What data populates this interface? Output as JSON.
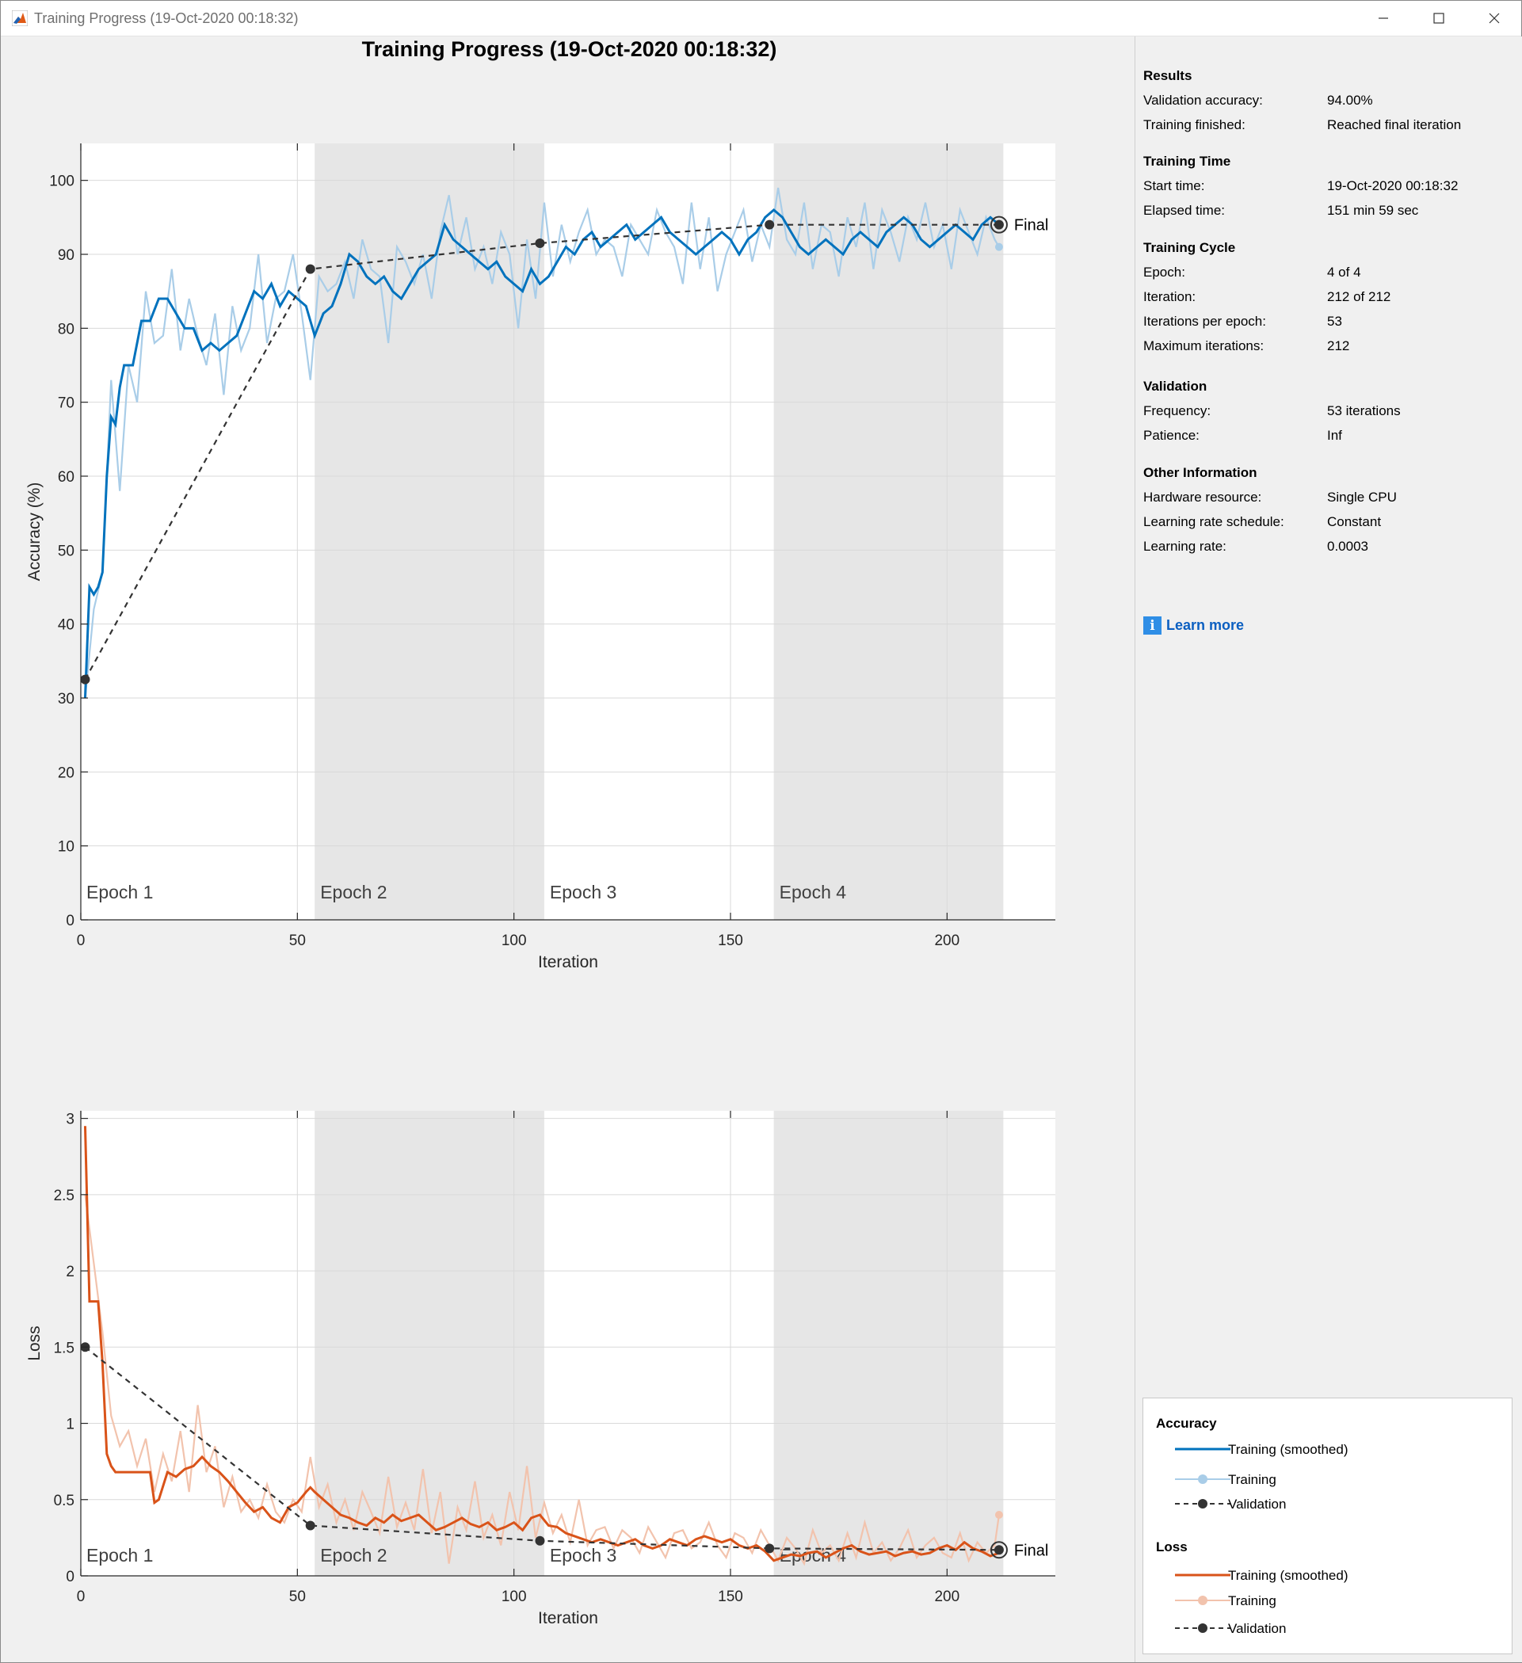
{
  "window": {
    "title": "Training Progress (19-Oct-2020 00:18:32)",
    "controls": {
      "minimize_icon": "minimize-icon",
      "maximize_icon": "maximize-icon",
      "close_icon": "close-icon"
    }
  },
  "main_title": "Training Progress (19-Oct-2020 00:18:32)",
  "panel": {
    "sections": [
      {
        "heading": "Results",
        "rows": [
          {
            "label": "Validation accuracy:",
            "value": "94.00%"
          },
          {
            "label": "Training finished:",
            "value": "Reached final iteration"
          }
        ]
      },
      {
        "heading": "Training Time",
        "rows": [
          {
            "label": "Start time:",
            "value": "19-Oct-2020 00:18:32"
          },
          {
            "label": "Elapsed time:",
            "value": "151 min 59 sec"
          }
        ]
      },
      {
        "heading": "Training Cycle",
        "rows": [
          {
            "label": "Epoch:",
            "value": "4 of 4"
          },
          {
            "label": "Iteration:",
            "value": "212 of 212"
          },
          {
            "label": "Iterations per epoch:",
            "value": "53"
          },
          {
            "label": "Maximum iterations:",
            "value": "212"
          }
        ]
      },
      {
        "heading": "Validation",
        "rows": [
          {
            "label": "Frequency:",
            "value": "53 iterations"
          },
          {
            "label": "Patience:",
            "value": "Inf"
          }
        ]
      },
      {
        "heading": "Other Information",
        "rows": [
          {
            "label": "Hardware resource:",
            "value": "Single CPU"
          },
          {
            "label": "Learning rate schedule:",
            "value": "Constant"
          },
          {
            "label": "Learning rate:",
            "value": "0.0003"
          }
        ]
      }
    ],
    "learn_more": "Learn more"
  },
  "legend": {
    "accuracy_heading": "Accuracy",
    "loss_heading": "Loss",
    "items": [
      "Training (smoothed)",
      "Training",
      "Validation"
    ]
  },
  "colors": {
    "acc_smoothed": "#0072bd",
    "acc_raw": "#a9cde8",
    "loss_smoothed": "#d95319",
    "loss_raw": "#f2c3ad",
    "validation": "#333333",
    "epoch_shade": "#e6e6e6"
  },
  "chart_data": [
    {
      "type": "line",
      "ylabel": "Accuracy (%)",
      "xlabel": "Iteration",
      "xlim": [
        0,
        225
      ],
      "ylim": [
        0,
        105
      ],
      "xticks": [
        0,
        50,
        100,
        150,
        200
      ],
      "yticks": [
        0,
        10,
        20,
        30,
        40,
        50,
        60,
        70,
        80,
        90,
        100
      ],
      "grid": true,
      "epoch_labels": [
        "Epoch 1",
        "Epoch 2",
        "Epoch 3",
        "Epoch 4"
      ],
      "epoch_bounds": [
        0,
        54,
        107,
        160,
        213
      ],
      "final_label": "Final",
      "series": [
        {
          "name": "Training (smoothed)",
          "x": [
            1,
            2,
            3,
            4,
            5,
            6,
            7,
            8,
            9,
            10,
            12,
            14,
            16,
            18,
            20,
            22,
            24,
            26,
            28,
            30,
            32,
            34,
            36,
            38,
            40,
            42,
            44,
            46,
            48,
            50,
            52,
            53,
            54,
            56,
            58,
            60,
            62,
            64,
            66,
            68,
            70,
            72,
            74,
            76,
            78,
            80,
            82,
            84,
            86,
            88,
            90,
            92,
            94,
            96,
            98,
            100,
            102,
            104,
            106,
            108,
            110,
            112,
            114,
            116,
            118,
            120,
            122,
            124,
            126,
            128,
            130,
            132,
            134,
            136,
            138,
            140,
            142,
            144,
            146,
            148,
            150,
            152,
            154,
            156,
            158,
            160,
            162,
            164,
            166,
            168,
            170,
            172,
            174,
            176,
            178,
            180,
            182,
            184,
            186,
            188,
            190,
            192,
            194,
            196,
            198,
            200,
            202,
            204,
            206,
            208,
            210,
            212
          ],
          "y": [
            30,
            45,
            44,
            45,
            47,
            60,
            68,
            67,
            72,
            75,
            75,
            81,
            81,
            84,
            84,
            82,
            80,
            80,
            77,
            78,
            77,
            78,
            79,
            82,
            85,
            84,
            86,
            83,
            85,
            84,
            83,
            81,
            79,
            82,
            83,
            86,
            90,
            89,
            87,
            86,
            87,
            85,
            84,
            86,
            88,
            89,
            90,
            94,
            92,
            91,
            90,
            89,
            88,
            89,
            87,
            86,
            85,
            88,
            86,
            87,
            89,
            91,
            90,
            92,
            93,
            91,
            92,
            93,
            94,
            92,
            93,
            94,
            95,
            93,
            92,
            91,
            90,
            91,
            92,
            93,
            92,
            90,
            92,
            93,
            95,
            96,
            95,
            93,
            91,
            90,
            91,
            92,
            91,
            90,
            92,
            93,
            92,
            91,
            93,
            94,
            95,
            94,
            92,
            91,
            92,
            93,
            94,
            93,
            92,
            94,
            95,
            94
          ]
        },
        {
          "name": "Training",
          "x": [
            1,
            3,
            5,
            7,
            9,
            11,
            13,
            15,
            17,
            19,
            21,
            23,
            25,
            27,
            29,
            31,
            33,
            35,
            37,
            39,
            41,
            43,
            45,
            47,
            49,
            51,
            53,
            55,
            57,
            59,
            61,
            63,
            65,
            67,
            69,
            71,
            73,
            75,
            77,
            79,
            81,
            83,
            85,
            87,
            89,
            91,
            93,
            95,
            97,
            99,
            101,
            103,
            105,
            107,
            109,
            111,
            113,
            115,
            117,
            119,
            121,
            123,
            125,
            127,
            129,
            131,
            133,
            135,
            137,
            139,
            141,
            143,
            145,
            147,
            149,
            151,
            153,
            155,
            157,
            159,
            161,
            163,
            165,
            167,
            169,
            171,
            173,
            175,
            177,
            179,
            181,
            183,
            185,
            187,
            189,
            191,
            193,
            195,
            197,
            199,
            201,
            203,
            205,
            207,
            209,
            211,
            212
          ],
          "y": [
            30,
            42,
            47,
            73,
            58,
            75,
            70,
            85,
            78,
            79,
            88,
            77,
            84,
            79,
            75,
            82,
            71,
            83,
            77,
            80,
            90,
            78,
            84,
            85,
            90,
            82,
            73,
            87,
            85,
            86,
            89,
            84,
            92,
            88,
            87,
            78,
            91,
            89,
            86,
            90,
            84,
            93,
            98,
            90,
            95,
            88,
            91,
            86,
            93,
            90,
            80,
            92,
            84,
            97,
            87,
            94,
            89,
            93,
            96,
            90,
            92,
            91,
            87,
            94,
            92,
            90,
            96,
            93,
            91,
            86,
            97,
            88,
            95,
            85,
            90,
            93,
            96,
            89,
            94,
            91,
            99,
            92,
            90,
            97,
            88,
            94,
            93,
            87,
            95,
            91,
            97,
            88,
            96,
            93,
            89,
            95,
            92,
            97,
            91,
            94,
            88,
            96,
            93,
            90,
            95,
            92,
            91
          ]
        },
        {
          "name": "Validation",
          "x": [
            1,
            53,
            106,
            159,
            212
          ],
          "y": [
            32.5,
            88,
            91.5,
            94,
            94
          ]
        }
      ]
    },
    {
      "type": "line",
      "ylabel": "Loss",
      "xlabel": "Iteration",
      "xlim": [
        0,
        225
      ],
      "ylim": [
        0,
        3.05
      ],
      "xticks": [
        0,
        50,
        100,
        150,
        200
      ],
      "yticks": [
        0,
        0.5,
        1,
        1.5,
        2,
        2.5,
        3
      ],
      "ytick_labels": [
        "0",
        "0.5",
        "1",
        "1.5",
        "2",
        "2.5",
        "3"
      ],
      "grid": true,
      "epoch_labels": [
        "Epoch 1",
        "Epoch 2",
        "Epoch 3",
        "Epoch 4"
      ],
      "epoch_bounds": [
        0,
        54,
        107,
        160,
        213
      ],
      "final_label": "Final",
      "series": [
        {
          "name": "Training (smoothed)",
          "x": [
            1,
            2,
            3,
            4,
            5,
            6,
            7,
            8,
            9,
            10,
            12,
            14,
            16,
            17,
            18,
            20,
            22,
            24,
            26,
            28,
            30,
            32,
            34,
            36,
            38,
            40,
            42,
            44,
            46,
            48,
            50,
            52,
            53,
            54,
            56,
            58,
            60,
            62,
            64,
            66,
            68,
            70,
            72,
            74,
            76,
            78,
            80,
            82,
            84,
            86,
            88,
            90,
            92,
            94,
            96,
            98,
            100,
            102,
            104,
            106,
            108,
            110,
            112,
            114,
            116,
            118,
            120,
            122,
            124,
            126,
            128,
            130,
            132,
            134,
            136,
            138,
            140,
            142,
            144,
            146,
            148,
            150,
            152,
            154,
            156,
            158,
            160,
            162,
            164,
            166,
            168,
            170,
            172,
            174,
            176,
            178,
            180,
            182,
            184,
            186,
            188,
            190,
            192,
            194,
            196,
            198,
            200,
            202,
            204,
            206,
            208,
            210,
            212
          ],
          "y": [
            2.95,
            1.8,
            1.8,
            1.8,
            1.4,
            0.8,
            0.72,
            0.68,
            0.68,
            0.68,
            0.68,
            0.68,
            0.68,
            0.48,
            0.5,
            0.68,
            0.65,
            0.7,
            0.72,
            0.78,
            0.72,
            0.68,
            0.62,
            0.55,
            0.48,
            0.42,
            0.45,
            0.38,
            0.35,
            0.45,
            0.48,
            0.55,
            0.58,
            0.55,
            0.5,
            0.45,
            0.4,
            0.38,
            0.35,
            0.33,
            0.38,
            0.35,
            0.4,
            0.36,
            0.38,
            0.4,
            0.35,
            0.3,
            0.32,
            0.35,
            0.38,
            0.34,
            0.32,
            0.35,
            0.3,
            0.32,
            0.35,
            0.3,
            0.38,
            0.4,
            0.33,
            0.32,
            0.28,
            0.26,
            0.24,
            0.22,
            0.24,
            0.22,
            0.2,
            0.22,
            0.24,
            0.2,
            0.18,
            0.2,
            0.24,
            0.22,
            0.2,
            0.24,
            0.26,
            0.24,
            0.22,
            0.24,
            0.2,
            0.18,
            0.2,
            0.16,
            0.1,
            0.12,
            0.14,
            0.13,
            0.15,
            0.16,
            0.12,
            0.15,
            0.18,
            0.2,
            0.16,
            0.14,
            0.15,
            0.16,
            0.13,
            0.15,
            0.16,
            0.14,
            0.15,
            0.18,
            0.2,
            0.17,
            0.22,
            0.18,
            0.16,
            0.13,
            0.15
          ]
        },
        {
          "name": "Training",
          "x": [
            1,
            3,
            5,
            7,
            9,
            11,
            13,
            15,
            17,
            19,
            21,
            23,
            25,
            27,
            29,
            31,
            33,
            35,
            37,
            39,
            41,
            43,
            45,
            47,
            49,
            51,
            53,
            55,
            57,
            59,
            61,
            63,
            65,
            67,
            69,
            71,
            73,
            75,
            77,
            79,
            81,
            83,
            85,
            87,
            89,
            91,
            93,
            95,
            97,
            99,
            101,
            103,
            105,
            107,
            109,
            111,
            113,
            115,
            117,
            119,
            121,
            123,
            125,
            127,
            129,
            131,
            133,
            135,
            137,
            139,
            141,
            143,
            145,
            147,
            149,
            151,
            153,
            155,
            157,
            159,
            161,
            163,
            165,
            167,
            169,
            171,
            173,
            175,
            177,
            179,
            181,
            183,
            185,
            187,
            189,
            191,
            193,
            195,
            197,
            199,
            201,
            203,
            205,
            207,
            209,
            211,
            212
          ],
          "y": [
            2.5,
            2.05,
            1.6,
            1.05,
            0.85,
            0.95,
            0.72,
            0.9,
            0.55,
            0.8,
            0.62,
            0.95,
            0.55,
            1.12,
            0.68,
            0.85,
            0.45,
            0.65,
            0.42,
            0.5,
            0.38,
            0.6,
            0.42,
            0.35,
            0.5,
            0.42,
            0.78,
            0.45,
            0.6,
            0.35,
            0.5,
            0.3,
            0.55,
            0.42,
            0.28,
            0.65,
            0.32,
            0.48,
            0.3,
            0.7,
            0.28,
            0.55,
            0.08,
            0.45,
            0.3,
            0.62,
            0.25,
            0.4,
            0.2,
            0.55,
            0.3,
            0.72,
            0.25,
            0.48,
            0.28,
            0.4,
            0.22,
            0.5,
            0.2,
            0.3,
            0.32,
            0.18,
            0.3,
            0.25,
            0.15,
            0.32,
            0.22,
            0.12,
            0.28,
            0.3,
            0.18,
            0.22,
            0.35,
            0.2,
            0.12,
            0.28,
            0.25,
            0.15,
            0.3,
            0.2,
            0.1,
            0.25,
            0.18,
            0.08,
            0.3,
            0.15,
            0.2,
            0.1,
            0.28,
            0.12,
            0.35,
            0.15,
            0.22,
            0.1,
            0.18,
            0.3,
            0.12,
            0.2,
            0.25,
            0.15,
            0.12,
            0.28,
            0.1,
            0.22,
            0.15,
            0.2,
            0.4
          ]
        },
        {
          "name": "Validation",
          "x": [
            1,
            53,
            106,
            159,
            212
          ],
          "y": [
            1.5,
            0.33,
            0.23,
            0.18,
            0.17
          ]
        }
      ]
    }
  ]
}
